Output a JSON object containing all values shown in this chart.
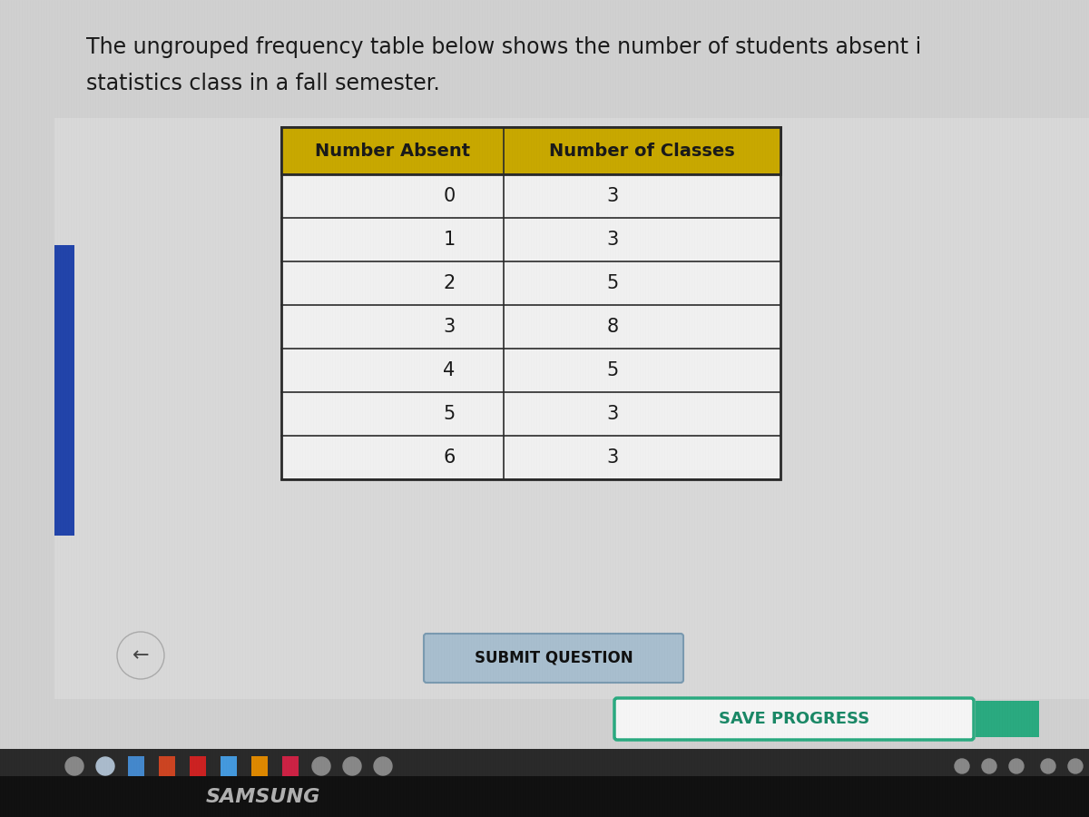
{
  "title_line1": "The ungrouped frequency table below shows the number of students absent i",
  "title_line2": "statistics class in a fall semester.",
  "col1_header": "Number Absent",
  "col2_header": "Number of Classes",
  "col1_data": [
    "0",
    "1",
    "2",
    "3",
    "4",
    "5",
    "6"
  ],
  "col2_data": [
    "3",
    "3",
    "5",
    "8",
    "5",
    "3",
    "3"
  ],
  "submit_btn_text": "SUBMIT QUESTION",
  "save_btn_text": "SAVE PROGRESS",
  "bg_color": "#d0d0d0",
  "header_bg_color": "#c8a800",
  "table_bg_color": "#f0f0f0",
  "table_border_color": "#2a2a2a",
  "title_color": "#1a1a1a",
  "data_color": "#1a1a1a",
  "submit_btn_bg": "#a8bece",
  "submit_btn_border": "#7a9ab0",
  "save_btn_color": "#f5f5f5",
  "save_btn_border_color": "#2aaa80",
  "save_btn_text_color": "#1a8866",
  "teal_btn_color": "#2aaa80",
  "back_btn_color": "#d8d8d8",
  "back_btn_border": "#aaaaaa",
  "left_bar_color": "#2244aa",
  "monitor_bottom_color": "#1a1a1a",
  "samsung_text_color": "#b0b0b0",
  "taskbar_bg": "#2a2a2a",
  "screen_bg_lower": "#c0c8d0"
}
